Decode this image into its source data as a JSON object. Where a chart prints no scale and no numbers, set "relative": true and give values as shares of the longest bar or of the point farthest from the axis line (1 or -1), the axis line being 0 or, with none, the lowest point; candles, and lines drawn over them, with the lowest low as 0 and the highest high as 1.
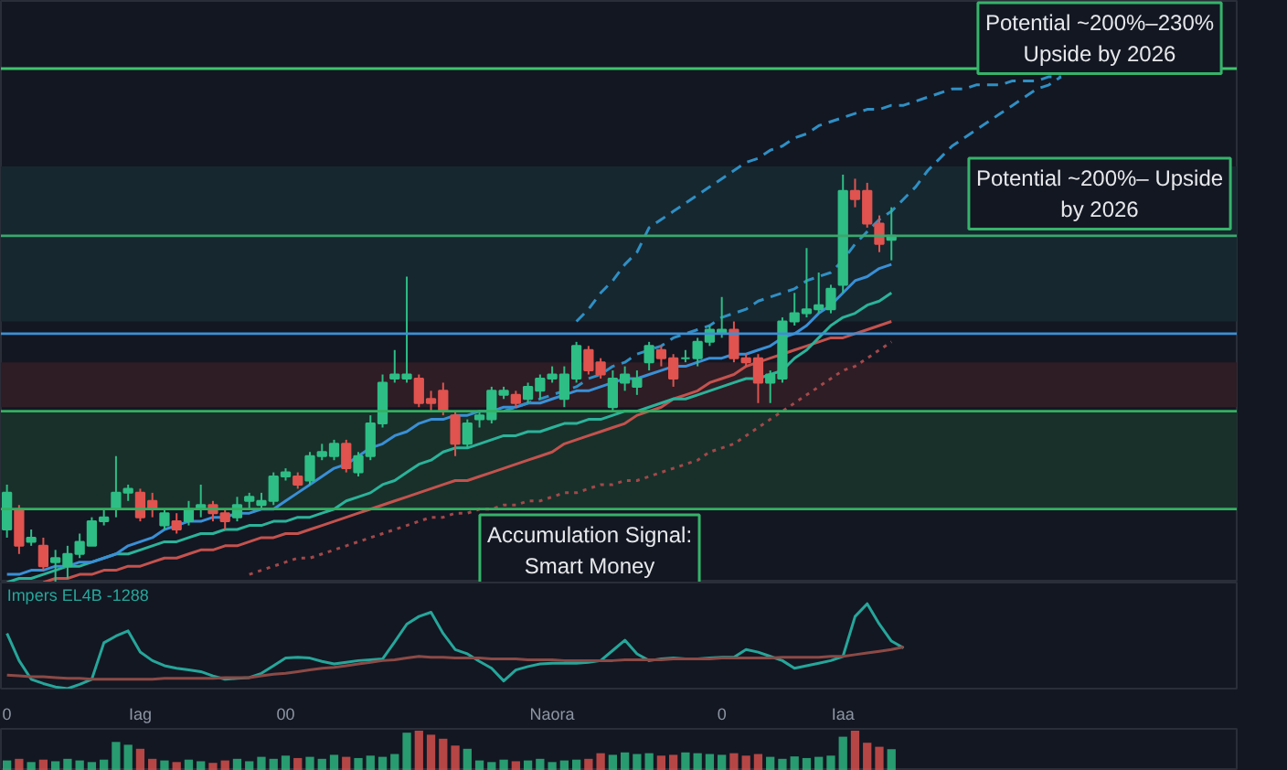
{
  "chart_data": [
    {
      "type": "candlestick",
      "relative": true,
      "tick_labels": false,
      "categories": [
        null,
        null,
        null,
        null,
        null,
        null,
        null,
        null,
        null,
        null,
        null,
        null,
        null,
        null,
        null,
        null,
        null,
        null,
        null,
        null,
        null,
        null,
        null,
        null,
        null,
        null,
        null,
        null,
        null,
        null,
        null,
        null,
        null,
        null,
        null,
        null,
        null,
        null,
        null,
        null,
        null,
        null,
        null,
        null,
        null,
        null,
        null,
        null,
        null,
        null,
        null,
        null,
        null,
        null,
        null,
        null,
        null,
        null,
        null,
        null,
        null,
        null,
        null,
        null,
        null,
        null,
        null,
        null,
        null,
        null,
        null,
        null,
        null,
        null,
        null,
        null,
        null,
        null,
        null,
        null,
        null,
        null,
        null,
        null,
        null,
        null,
        null,
        null,
        null,
        null,
        null,
        null,
        null,
        null,
        null,
        null,
        null,
        null,
        null,
        null,
        null,
        null
      ],
      "ohlc": [
        [
          0.13,
          0.24,
          0.11,
          0.22
        ],
        [
          0.18,
          0.19,
          0.07,
          0.09
        ],
        [
          0.1,
          0.13,
          0.09,
          0.11
        ],
        [
          0.09,
          0.11,
          0.03,
          0.04
        ],
        [
          0.05,
          0.08,
          0,
          0.06
        ],
        [
          0.04,
          0.09,
          0.01,
          0.07
        ],
        [
          0.07,
          0.12,
          0.06,
          0.1
        ],
        [
          0.09,
          0.16,
          0.09,
          0.15
        ],
        [
          0.15,
          0.18,
          0.14,
          0.16
        ],
        [
          0.18,
          0.31,
          0.16,
          0.22
        ],
        [
          0.22,
          0.24,
          0.2,
          0.23
        ],
        [
          0.22,
          0.23,
          0.15,
          0.16
        ],
        [
          0.2,
          0.22,
          0.16,
          0.18
        ],
        [
          0.14,
          0.18,
          0.13,
          0.17
        ],
        [
          0.15,
          0.17,
          0.12,
          0.13
        ],
        [
          0.15,
          0.2,
          0.14,
          0.18
        ],
        [
          0.18,
          0.24,
          0.16,
          0.19
        ],
        [
          0.19,
          0.2,
          0.15,
          0.17
        ],
        [
          0.17,
          0.18,
          0.13,
          0.15
        ],
        [
          0.16,
          0.21,
          0.15,
          0.19
        ],
        [
          0.2,
          0.22,
          0.18,
          0.21
        ],
        [
          0.19,
          0.22,
          0.18,
          0.2
        ],
        [
          0.2,
          0.27,
          0.19,
          0.26
        ],
        [
          0.26,
          0.28,
          0.25,
          0.27
        ],
        [
          0.26,
          0.27,
          0.23,
          0.24
        ],
        [
          0.25,
          0.32,
          0.24,
          0.31
        ],
        [
          0.31,
          0.34,
          0.3,
          0.32
        ],
        [
          0.31,
          0.35,
          0.3,
          0.34
        ],
        [
          0.34,
          0.35,
          0.27,
          0.28
        ],
        [
          0.27,
          0.32,
          0.26,
          0.31
        ],
        [
          0.31,
          0.41,
          0.3,
          0.39
        ],
        [
          0.39,
          0.51,
          0.38,
          0.49
        ],
        [
          0.5,
          0.57,
          0.49,
          0.51
        ],
        [
          0.5,
          0.75,
          0.49,
          0.51
        ],
        [
          0.5,
          0.51,
          0.43,
          0.44
        ],
        [
          0.45,
          0.47,
          0.42,
          0.44
        ],
        [
          0.47,
          0.49,
          0.41,
          0.42
        ],
        [
          0.41,
          0.42,
          0.31,
          0.34
        ],
        [
          0.34,
          0.4,
          0.33,
          0.39
        ],
        [
          0.4,
          0.42,
          0.38,
          0.41
        ],
        [
          0.4,
          0.48,
          0.39,
          0.47
        ],
        [
          0.46,
          0.48,
          0.45,
          0.47
        ],
        [
          0.46,
          0.47,
          0.43,
          0.44
        ],
        [
          0.45,
          0.49,
          0.44,
          0.48
        ],
        [
          0.47,
          0.51,
          0.45,
          0.5
        ],
        [
          0.5,
          0.53,
          0.49,
          0.51
        ],
        [
          0.45,
          0.53,
          0.43,
          0.51
        ],
        [
          0.5,
          0.59,
          0.49,
          0.58
        ],
        [
          0.57,
          0.58,
          0.51,
          0.52
        ],
        [
          0.54,
          0.55,
          0.5,
          0.51
        ],
        [
          0.43,
          0.52,
          0.42,
          0.5
        ],
        [
          0.49,
          0.53,
          0.47,
          0.51
        ],
        [
          0.48,
          0.52,
          0.46,
          0.5
        ],
        [
          0.54,
          0.59,
          0.52,
          0.58
        ],
        [
          0.57,
          0.58,
          0.53,
          0.55
        ],
        [
          0.55,
          0.56,
          0.48,
          0.5
        ],
        [
          0.55,
          0.57,
          0.54,
          0.55
        ],
        [
          0.55,
          0.6,
          0.53,
          0.59
        ],
        [
          0.59,
          0.63,
          0.58,
          0.62
        ],
        [
          0.61,
          0.7,
          0.6,
          0.62
        ],
        [
          0.62,
          0.64,
          0.54,
          0.55
        ],
        [
          0.55,
          0.56,
          0.53,
          0.54
        ],
        [
          0.55,
          0.56,
          0.44,
          0.49
        ],
        [
          0.49,
          0.52,
          0.44,
          0.51
        ],
        [
          0.5,
          0.65,
          0.49,
          0.64
        ],
        [
          0.64,
          0.71,
          0.63,
          0.66
        ],
        [
          0.66,
          0.82,
          0.65,
          0.67
        ],
        [
          0.67,
          0.76,
          0.66,
          0.68
        ],
        [
          0.67,
          0.73,
          0.66,
          0.72
        ],
        [
          0.73,
          1,
          0.71,
          0.96
        ],
        [
          0.96,
          0.99,
          0.92,
          0.94
        ],
        [
          0.96,
          0.98,
          0.87,
          0.88
        ],
        [
          0.88,
          0.9,
          0.81,
          0.83
        ],
        [
          0.84,
          0.92,
          0.79,
          0.85
        ],
        null,
        null,
        null,
        null,
        null,
        null,
        null,
        null,
        null,
        null,
        null,
        null,
        null,
        null,
        null,
        null,
        null,
        null,
        null,
        null,
        null,
        null,
        null,
        null,
        null,
        null,
        null,
        null
      ],
      "colors": [
        "#2ebd85",
        "#e0534f",
        "#2ebd85",
        "#e0534f",
        "#2ebd85",
        "#2ebd85",
        "#2ebd85",
        "#2ebd85",
        "#2ebd85",
        "#2ebd85",
        "#2ebd85",
        "#e0534f",
        "#e0534f",
        "#2ebd85",
        "#e0534f",
        "#2ebd85",
        "#2ebd85",
        "#e0534f",
        "#e0534f",
        "#2ebd85",
        "#2ebd85",
        "#2ebd85",
        "#2ebd85",
        "#2ebd85",
        "#e0534f",
        "#2ebd85",
        "#2ebd85",
        "#2ebd85",
        "#e0534f",
        "#2ebd85",
        "#2ebd85",
        "#2ebd85",
        "#2ebd85",
        "#2ebd85",
        "#e0534f",
        "#e0534f",
        "#e0534f",
        "#e0534f",
        "#2ebd85",
        "#2ebd85",
        "#2ebd85",
        "#2ebd85",
        "#e0534f",
        "#2ebd85",
        "#2ebd85",
        "#2ebd85",
        "#2ebd85",
        "#2ebd85",
        "#e0534f",
        "#e0534f",
        "#2ebd85",
        "#2ebd85",
        "#2ebd85",
        "#2ebd85",
        "#e0534f",
        "#e0534f",
        "#2ebd85",
        "#2ebd85",
        "#2ebd85",
        "#2ebd85",
        "#e0534f",
        "#e0534f",
        "#e0534f",
        "#2ebd85",
        "#2ebd85",
        "#2ebd85",
        "#2ebd85",
        "#2ebd85",
        "#2ebd85",
        "#2ebd85",
        "#e0534f",
        "#e0534f",
        "#e0534f",
        "#2ebd85",
        null,
        null,
        null,
        null,
        null,
        null,
        null,
        null,
        null,
        null,
        null,
        null,
        null,
        null,
        null,
        null,
        null,
        null,
        null,
        null,
        null,
        null,
        null,
        null,
        null,
        null,
        null,
        null
      ],
      "series": [
        {
          "type": "line",
          "color": "#a3484a",
          "line_style": "dotted",
          "values": [
            null,
            null,
            null,
            null,
            null,
            null,
            null,
            null,
            null,
            null,
            null,
            null,
            null,
            null,
            null,
            null,
            null,
            null,
            null,
            null,
            0.02,
            0.03,
            0.04,
            0.05,
            0.06,
            0.06,
            0.07,
            0.08,
            0.09,
            0.1,
            0.11,
            0.12,
            0.13,
            0.14,
            0.15,
            0.16,
            0.16,
            0.17,
            0.17,
            0.18,
            0.18,
            0.19,
            0.19,
            0.2,
            0.2,
            0.21,
            0.22,
            0.22,
            0.23,
            0.24,
            0.24,
            0.25,
            0.25,
            0.26,
            0.27,
            0.28,
            0.29,
            0.3,
            0.32,
            0.33,
            0.34,
            0.36,
            0.38,
            0.4,
            0.42,
            0.44,
            0.46,
            0.48,
            0.5,
            0.52,
            0.53,
            0.55,
            0.57,
            0.59,
            null,
            null,
            null,
            null,
            null,
            null,
            null,
            null,
            null,
            null,
            null,
            null,
            null,
            null,
            null,
            null,
            null,
            null,
            null,
            null,
            null,
            null,
            null,
            null,
            null,
            null,
            null,
            null
          ]
        },
        {
          "type": "line",
          "color": "#c4524e",
          "values": [
            null,
            null,
            null,
            0,
            0.01,
            0.01,
            0.02,
            0.02,
            0.03,
            0.03,
            0.04,
            0.04,
            0.05,
            0.06,
            0.06,
            0.07,
            0.08,
            0.08,
            0.09,
            0.09,
            0.1,
            0.11,
            0.11,
            0.12,
            0.12,
            0.13,
            0.14,
            0.15,
            0.16,
            0.17,
            0.18,
            0.19,
            0.2,
            0.21,
            0.22,
            0.23,
            0.24,
            0.25,
            0.25,
            0.26,
            0.27,
            0.28,
            0.29,
            0.3,
            0.31,
            0.32,
            0.34,
            0.35,
            0.36,
            0.37,
            0.38,
            0.39,
            0.41,
            0.42,
            0.43,
            0.45,
            0.46,
            0.47,
            0.49,
            0.5,
            0.51,
            0.53,
            0.54,
            0.55,
            0.56,
            0.57,
            0.58,
            0.59,
            0.6,
            0.6,
            0.61,
            0.62,
            0.63,
            0.64,
            null,
            null,
            null,
            null,
            null,
            null,
            null,
            null,
            null,
            null,
            null,
            null,
            null,
            null,
            null,
            null,
            null,
            null,
            null,
            null,
            null,
            null,
            null,
            null,
            null,
            null,
            null,
            null
          ]
        },
        {
          "type": "line",
          "color": "#2bb39a",
          "values": [
            0,
            0.01,
            0.01,
            0.02,
            0.03,
            0.04,
            0.04,
            0.05,
            0.06,
            0.07,
            0.07,
            0.08,
            0.09,
            0.1,
            0.1,
            0.11,
            0.12,
            0.12,
            0.13,
            0.13,
            0.14,
            0.14,
            0.15,
            0.15,
            0.16,
            0.16,
            0.17,
            0.18,
            0.2,
            0.21,
            0.22,
            0.24,
            0.25,
            0.27,
            0.29,
            0.3,
            0.32,
            0.33,
            0.33,
            0.34,
            0.35,
            0.36,
            0.36,
            0.37,
            0.37,
            0.38,
            0.39,
            0.39,
            0.4,
            0.4,
            0.41,
            0.42,
            0.42,
            0.43,
            0.44,
            0.45,
            0.45,
            0.46,
            0.47,
            0.48,
            0.49,
            0.5,
            0.5,
            0.51,
            0.52,
            0.55,
            0.57,
            0.6,
            0.63,
            0.65,
            0.66,
            0.68,
            0.69,
            0.71,
            null,
            null,
            null,
            null,
            null,
            null,
            null,
            null,
            null,
            null,
            null,
            null,
            null,
            null,
            null,
            null,
            null,
            null,
            null,
            null,
            null,
            null,
            null,
            null,
            null,
            null,
            null,
            null
          ]
        },
        {
          "type": "line",
          "color": "#3a8fd6",
          "values": [
            0.02,
            0.02,
            0.03,
            0.03,
            0.04,
            0.04,
            0.05,
            0.05,
            0.06,
            0.07,
            0.09,
            0.1,
            0.11,
            0.13,
            0.14,
            0.15,
            0.15,
            0.16,
            0.16,
            0.17,
            0.17,
            0.18,
            0.18,
            0.2,
            0.22,
            0.24,
            0.26,
            0.28,
            0.29,
            0.31,
            0.33,
            0.34,
            0.36,
            0.37,
            0.39,
            0.4,
            0.4,
            0.41,
            0.41,
            0.42,
            0.42,
            0.43,
            0.43,
            0.44,
            0.44,
            0.45,
            0.46,
            0.47,
            0.47,
            0.48,
            0.49,
            0.5,
            0.5,
            0.51,
            0.52,
            0.53,
            0.53,
            0.54,
            0.55,
            0.55,
            0.56,
            0.56,
            0.57,
            0.58,
            0.6,
            0.61,
            0.63,
            0.66,
            0.68,
            0.71,
            0.74,
            0.75,
            0.77,
            0.78,
            null,
            null,
            null,
            null,
            null,
            null,
            null,
            null,
            null,
            null,
            null,
            null,
            null,
            null,
            null,
            null,
            null,
            null,
            null,
            null,
            null,
            null,
            null,
            null,
            null,
            null,
            null,
            null
          ]
        },
        {
          "type": "line",
          "color": "#2f8fc4",
          "line_style": "dashed",
          "values": [
            null,
            null,
            null,
            null,
            null,
            null,
            null,
            null,
            null,
            null,
            null,
            null,
            null,
            null,
            null,
            null,
            null,
            null,
            null,
            null,
            null,
            null,
            null,
            null,
            null,
            null,
            null,
            null,
            null,
            null,
            null,
            null,
            null,
            null,
            null,
            null,
            null,
            null,
            null,
            null,
            null,
            null,
            null,
            null,
            null,
            null,
            null,
            0.64,
            0.67,
            0.71,
            0.74,
            0.78,
            0.81,
            0.87,
            0.89,
            0.91,
            0.93,
            0.95,
            0.97,
            0.99,
            1.01,
            1.03,
            1.04,
            1.06,
            1.07,
            1.09,
            1.1,
            1.12,
            1.13,
            1.14,
            1.15,
            1.16,
            1.16,
            1.17,
            1.17,
            1.18,
            1.19,
            1.2,
            1.21,
            1.21,
            1.22,
            1.22,
            1.22,
            1.23,
            1.23,
            1.23,
            1.24,
            1.24,
            null,
            null,
            null,
            null,
            null,
            null,
            null,
            null,
            null,
            null,
            null,
            null,
            null,
            null
          ]
        },
        {
          "type": "line",
          "color": "#2f8fc4",
          "line_style": "dashed",
          "values": [
            null,
            null,
            null,
            null,
            null,
            null,
            null,
            null,
            null,
            null,
            null,
            null,
            null,
            null,
            null,
            null,
            null,
            null,
            null,
            null,
            null,
            null,
            null,
            null,
            null,
            null,
            null,
            null,
            null,
            null,
            null,
            null,
            null,
            null,
            null,
            null,
            null,
            null,
            null,
            null,
            null,
            0.42,
            0.43,
            0.44,
            0.45,
            0.46,
            0.47,
            0.48,
            0.5,
            0.51,
            0.53,
            0.54,
            0.56,
            0.57,
            0.58,
            0.6,
            0.61,
            0.62,
            0.63,
            0.65,
            0.66,
            0.67,
            0.69,
            0.7,
            0.71,
            0.72,
            0.74,
            0.75,
            0.76,
            0.79,
            0.83,
            0.86,
            0.89,
            0.91,
            0.94,
            0.97,
            1.01,
            1.04,
            1.07,
            1.09,
            1.11,
            1.13,
            1.15,
            1.17,
            1.19,
            1.21,
            1.22,
            1.24,
            null,
            null,
            null,
            null,
            null,
            null,
            null,
            null,
            null,
            null,
            null,
            null,
            null,
            null
          ]
        }
      ],
      "bands": [
        {
          "axis": "y",
          "from": 0.64,
          "to": 1.02,
          "color": "#16272f"
        },
        {
          "axis": "y",
          "from": 0.43,
          "to": 0.54,
          "color": "#2e1d25"
        },
        {
          "axis": "y",
          "from": 0.18,
          "to": 0.42,
          "color": "#19302a"
        }
      ],
      "ref_lines": [
        {
          "axis": "y",
          "value": 1.26,
          "color": "#3ec46d"
        },
        {
          "axis": "y",
          "value": 0.85,
          "color": "#3aa76d"
        },
        {
          "axis": "y",
          "value": 0.61,
          "color": "#3d8fd6"
        },
        {
          "axis": "y",
          "value": 0.42,
          "color": "#33b060"
        },
        {
          "axis": "y",
          "value": 0.18,
          "color": "#33b060"
        }
      ],
      "annotations": [
        "Potential ~200%–230%\nUpside by 2026",
        "Potential ~200%– Upside\nby 2026",
        "Accumulation Signal:\nSmart Money"
      ]
    },
    {
      "type": "line",
      "relative": true,
      "tick_labels": "x",
      "categories": [
        "0",
        null,
        null,
        null,
        null,
        null,
        null,
        null,
        null,
        null,
        null,
        "Iag",
        null,
        null,
        null,
        null,
        null,
        null,
        null,
        null,
        null,
        null,
        null,
        "00",
        null,
        null,
        null,
        null,
        null,
        null,
        null,
        null,
        null,
        null,
        null,
        null,
        null,
        null,
        null,
        null,
        null,
        null,
        null,
        null,
        null,
        "Naora",
        null,
        null,
        null,
        null,
        null,
        null,
        null,
        null,
        null,
        null,
        null,
        null,
        null,
        "0",
        null,
        null,
        null,
        null,
        null,
        null,
        null,
        null,
        null,
        "Iaa",
        null,
        null,
        null,
        null,
        null,
        null,
        null,
        null,
        null,
        null,
        null,
        null,
        null,
        null,
        null,
        null,
        null,
        null,
        null,
        null,
        null,
        null,
        null,
        null,
        null,
        null,
        null,
        null,
        null,
        null,
        null,
        null
      ],
      "series": [
        {
          "name": "Impers EL4B -1288",
          "color": "#26a69a",
          "values": [
            0.65,
            0.33,
            0.11,
            0.06,
            0.02,
            0,
            0.05,
            0.11,
            0.54,
            0.62,
            0.68,
            0.43,
            0.33,
            0.27,
            0.24,
            0.22,
            0.2,
            0.15,
            0.11,
            0.12,
            0.13,
            0.18,
            0.27,
            0.36,
            0.37,
            0.36,
            0.32,
            0.29,
            0.31,
            0.33,
            0.34,
            0.35,
            0.55,
            0.76,
            0.85,
            0.9,
            0.65,
            0.46,
            0.41,
            0.32,
            0.24,
            0.09,
            0.22,
            0.26,
            0.29,
            0.3,
            0.3,
            0.3,
            0.31,
            0.33,
            0.45,
            0.57,
            0.41,
            0.33,
            0.35,
            0.36,
            0.35,
            0.35,
            0.36,
            0.37,
            0.37,
            0.46,
            0.43,
            0.38,
            0.33,
            0.24,
            0.27,
            0.3,
            0.33,
            0.38,
            0.85,
            1,
            0.76,
            0.56,
            0.48,
            null,
            null,
            null,
            null,
            null,
            null,
            null,
            null,
            null,
            null,
            null,
            null,
            null,
            null,
            null,
            null,
            null,
            null,
            null,
            null,
            null,
            null,
            null,
            null,
            null,
            null,
            null
          ]
        },
        {
          "color": "#8c4a46",
          "values": [
            0.16,
            0.15,
            0.14,
            0.14,
            0.13,
            0.12,
            0.12,
            0.11,
            0.11,
            0.11,
            0.11,
            0.11,
            0.11,
            0.12,
            0.12,
            0.12,
            0.12,
            0.12,
            0.13,
            0.13,
            0.13,
            0.15,
            0.17,
            0.18,
            0.2,
            0.22,
            0.24,
            0.25,
            0.27,
            0.29,
            0.31,
            0.33,
            0.34,
            0.36,
            0.38,
            0.37,
            0.37,
            0.36,
            0.36,
            0.36,
            0.35,
            0.35,
            0.35,
            0.34,
            0.34,
            0.34,
            0.33,
            0.33,
            0.33,
            0.33,
            0.33,
            0.34,
            0.34,
            0.34,
            0.34,
            0.35,
            0.35,
            0.35,
            0.35,
            0.36,
            0.36,
            0.36,
            0.36,
            0.36,
            0.37,
            0.37,
            0.37,
            0.37,
            0.38,
            0.38,
            0.4,
            0.42,
            0.44,
            0.46,
            0.49,
            null,
            null,
            null,
            null,
            null,
            null,
            null,
            null,
            null,
            null,
            null,
            null,
            null,
            null,
            null,
            null,
            null,
            null,
            null,
            null,
            null,
            null,
            null,
            null,
            null,
            null,
            null
          ]
        }
      ]
    },
    {
      "type": "bar",
      "relative": true,
      "tick_labels": false,
      "categories": [
        null,
        null,
        null,
        null,
        null,
        null,
        null,
        null,
        null,
        null,
        null,
        null,
        null,
        null,
        null,
        null,
        null,
        null,
        null,
        null,
        null,
        null,
        null,
        null,
        null,
        null,
        null,
        null,
        null,
        null,
        null,
        null,
        null,
        null,
        null,
        null,
        null,
        null,
        null,
        null,
        null,
        null,
        null,
        null,
        null,
        null,
        null,
        null,
        null,
        null,
        null,
        null,
        null,
        null,
        null,
        null,
        null,
        null,
        null,
        null,
        null,
        null,
        null,
        null,
        null,
        null,
        null,
        null,
        null,
        null,
        null,
        null,
        null,
        null,
        null,
        null,
        null,
        null,
        null,
        null,
        null,
        null,
        null,
        null,
        null,
        null,
        null,
        null,
        null,
        null,
        null,
        null,
        null,
        null,
        null,
        null,
        null,
        null,
        null,
        null,
        null,
        null
      ],
      "colors": [
        "#2ebd85",
        "#e0534f",
        "#2ebd85",
        "#e0534f",
        "#2ebd85",
        "#2ebd85",
        "#2ebd85",
        "#2ebd85",
        "#2ebd85",
        "#2ebd85",
        "#2ebd85",
        "#e0534f",
        "#e0534f",
        "#2ebd85",
        "#e0534f",
        "#2ebd85",
        "#2ebd85",
        "#e0534f",
        "#e0534f",
        "#2ebd85",
        "#2ebd85",
        "#2ebd85",
        "#2ebd85",
        "#2ebd85",
        "#e0534f",
        "#2ebd85",
        "#2ebd85",
        "#2ebd85",
        "#e0534f",
        "#2ebd85",
        "#2ebd85",
        "#2ebd85",
        "#2ebd85",
        "#2ebd85",
        "#e0534f",
        "#e0534f",
        "#e0534f",
        "#e0534f",
        "#2ebd85",
        "#2ebd85",
        "#2ebd85",
        "#2ebd85",
        "#e0534f",
        "#2ebd85",
        "#2ebd85",
        "#2ebd85",
        "#2ebd85",
        "#2ebd85",
        "#e0534f",
        "#e0534f",
        "#2ebd85",
        "#2ebd85",
        "#2ebd85",
        "#2ebd85",
        "#e0534f",
        "#e0534f",
        "#2ebd85",
        "#2ebd85",
        "#2ebd85",
        "#2ebd85",
        "#e0534f",
        "#e0534f",
        "#e0534f",
        "#2ebd85",
        "#2ebd85",
        "#2ebd85",
        "#2ebd85",
        "#2ebd85",
        "#2ebd85",
        "#2ebd85",
        "#e0534f",
        "#e0534f",
        "#e0534f",
        "#2ebd85",
        null,
        null,
        null,
        null,
        null,
        null,
        null,
        null,
        null,
        null,
        null,
        null,
        null,
        null,
        null,
        null,
        null,
        null,
        null,
        null,
        null,
        null,
        null,
        null,
        null,
        null,
        null,
        null
      ],
      "values": [
        0.26,
        0.3,
        0.22,
        0.28,
        0.24,
        0.3,
        0.26,
        0.22,
        0.28,
        0.72,
        0.65,
        0.55,
        0.3,
        0.26,
        0.22,
        0.28,
        0.24,
        0.2,
        0.26,
        0.3,
        0.24,
        0.35,
        0.3,
        0.38,
        0.32,
        0.35,
        0.3,
        0.4,
        0.35,
        0.32,
        0.38,
        0.35,
        0.42,
        0.95,
        1,
        0.9,
        0.8,
        0.63,
        0.55,
        0.26,
        0.22,
        0.28,
        0.24,
        0.26,
        0.3,
        0.22,
        0.26,
        0.28,
        0.3,
        0.44,
        0.4,
        0.46,
        0.42,
        0.44,
        0.38,
        0.4,
        0.46,
        0.44,
        0.42,
        0.4,
        0.44,
        0.38,
        0.42,
        0.35,
        0.3,
        0.36,
        0.32,
        0.35,
        0.38,
        0.85,
        1,
        0.7,
        0.6,
        0.54,
        null,
        null,
        null,
        null,
        null,
        null,
        null,
        null,
        null,
        null,
        null,
        null,
        null,
        null,
        null,
        null,
        null,
        null,
        null,
        null,
        null,
        null,
        null,
        null,
        null,
        null,
        null,
        null
      ]
    }
  ]
}
